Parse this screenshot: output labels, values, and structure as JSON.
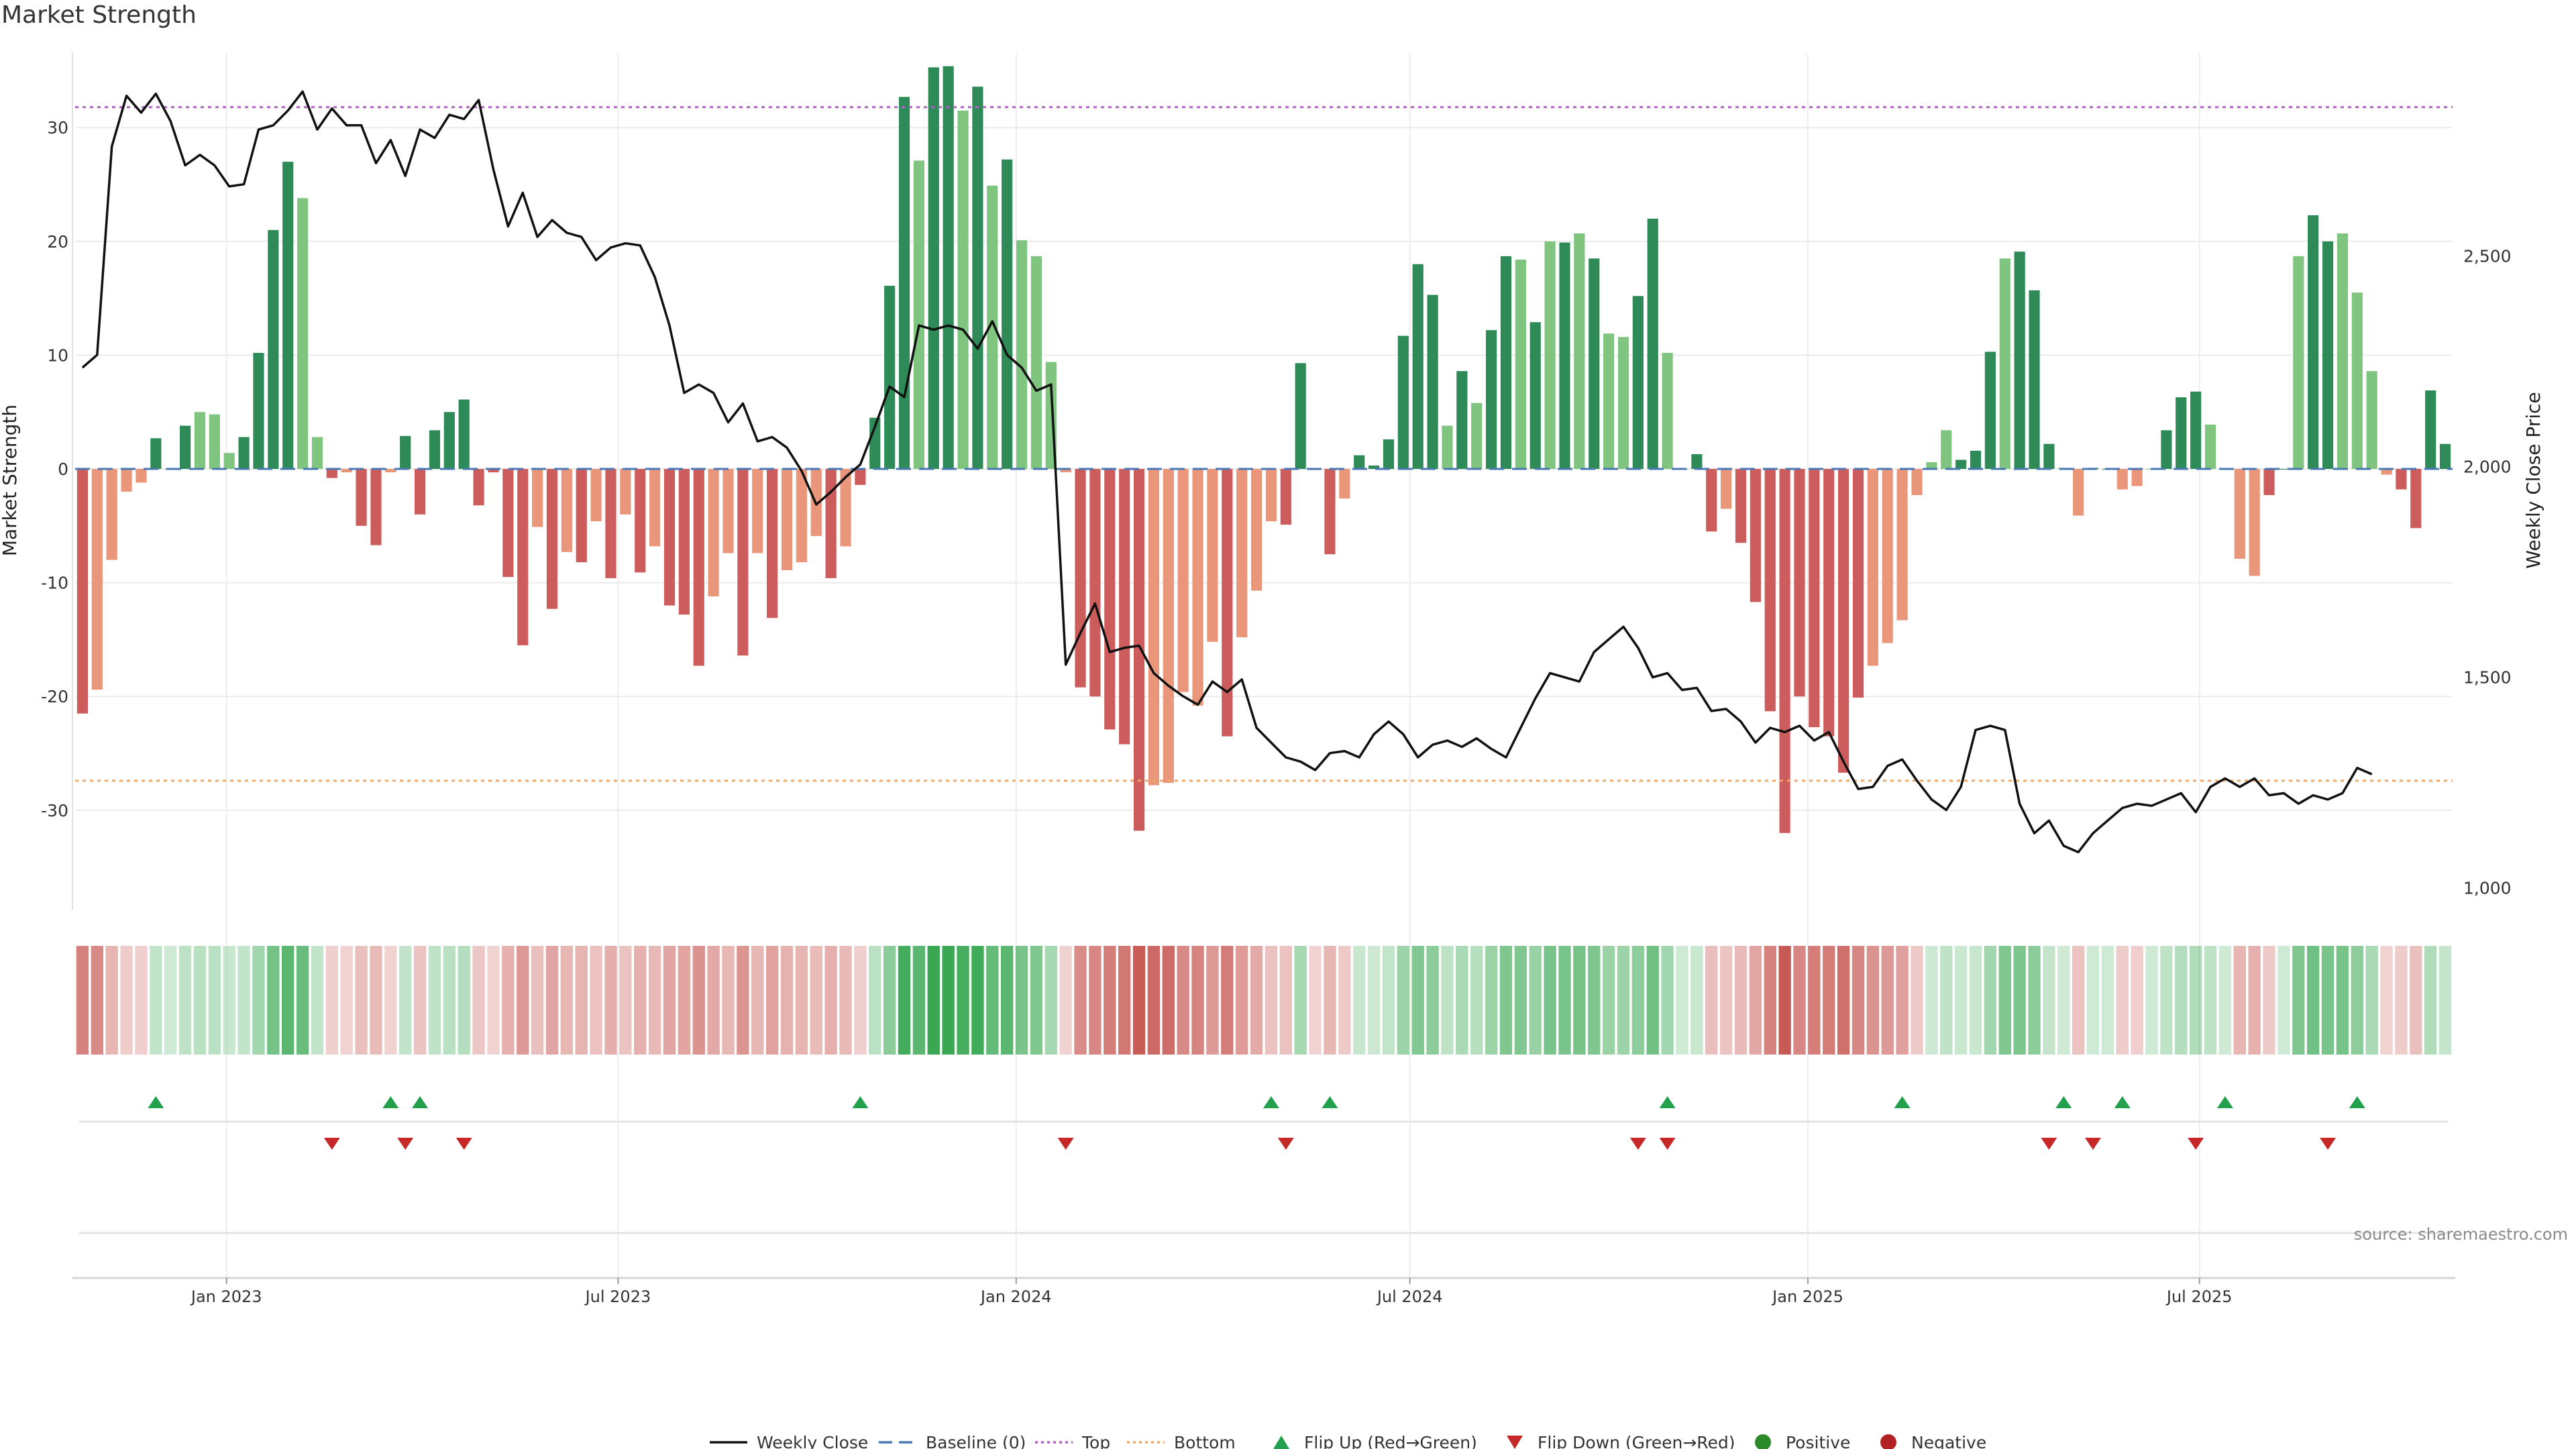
{
  "title": "Market Strength",
  "source": "source: sharemaestro.com",
  "colors": {
    "pos_strong": "#2e8b57",
    "pos_light": "#7fc47f",
    "neg_strong": "#cd5c5c",
    "neg_light": "#e9967a",
    "top_line": "#b25fc8",
    "bottom_line": "#f0a868",
    "baseline": "#4a78b5",
    "price_line": "#111111",
    "flip_up": "#22a04b",
    "flip_down": "#c62828",
    "positive_dot": "#2a8a2a",
    "negative_dot": "#b22222"
  },
  "chart_data": {
    "type": "bar",
    "ylabel": "Market Strength",
    "y2label": "Weekly Close Price",
    "ylim": [
      -38.5,
      36.5
    ],
    "y2lim": [
      955,
      2980
    ],
    "yticks": [
      30,
      20,
      10,
      0,
      -10,
      -20,
      -30
    ],
    "y2ticks": [
      "2,500",
      "2,000",
      "1,500",
      "1,000"
    ],
    "y2tickvalues": [
      2500,
      2000,
      1500,
      1000
    ],
    "top_level": 31.8,
    "bottom_level": -27.4,
    "x_start": "2022-10-23",
    "x_end": "2025-10-26",
    "xticks": [
      {
        "label": "Jan 2023",
        "date": "2023-01-01"
      },
      {
        "label": "Jul 2023",
        "date": "2023-07-01"
      },
      {
        "label": "Jan 2024",
        "date": "2024-01-01"
      },
      {
        "label": "Jul 2024",
        "date": "2024-07-01"
      },
      {
        "label": "Jan 2025",
        "date": "2025-01-01"
      },
      {
        "label": "Jul 2025",
        "date": "2025-07-01"
      }
    ],
    "strength": [
      -21.5,
      -19.4,
      -8,
      -2,
      -1.2,
      2.7,
      0,
      3.8,
      5,
      4.8,
      1.4,
      2.8,
      10.2,
      21,
      27,
      23.8,
      2.8,
      -0.8,
      -0.3,
      -5,
      -6.7,
      -0.3,
      2.9,
      -4,
      3.4,
      5,
      6.1,
      -3.2,
      -0.3,
      -9.5,
      -15.5,
      -5.1,
      -12.3,
      -7.3,
      -8.2,
      -4.6,
      -9.6,
      -4,
      -9.1,
      -6.8,
      -12,
      -12.8,
      -17.3,
      -11.2,
      -7.4,
      -16.4,
      -7.4,
      -13.1,
      -8.9,
      -8.2,
      -5.9,
      -9.6,
      -6.8,
      -1.4,
      4.5,
      16.1,
      32.7,
      27.1,
      35.3,
      35.4,
      31.5,
      33.6,
      24.9,
      27.2,
      20.1,
      18.7,
      9.4,
      -0.3,
      -19.2,
      -20,
      -22.9,
      -24.2,
      -31.8,
      -27.8,
      -27.6,
      -19.6,
      -20.8,
      -15.2,
      -23.5,
      -14.8,
      -10.7,
      -4.6,
      -4.9,
      9.3,
      -0.1,
      -7.5,
      -2.6,
      1.2,
      0.3,
      2.6,
      11.7,
      18,
      15.3,
      3.8,
      8.6,
      5.8,
      12.2,
      18.7,
      18.4,
      12.9,
      20,
      19.9,
      20.7,
      18.5,
      11.9,
      11.6,
      15.2,
      22,
      10.2,
      0,
      1.3,
      -5.5,
      -3.5,
      -6.5,
      -11.7,
      -21.3,
      -32,
      -20,
      -22.7,
      -23.5,
      -26.7,
      -20.1,
      -17.3,
      -15.3,
      -13.3,
      -2.3,
      0.6,
      3.4,
      0.8,
      1.6,
      10.3,
      18.5,
      19.1,
      15.7,
      2.2,
      0.1,
      -4.1,
      0.1,
      0,
      -1.8,
      -1.5,
      0,
      3.4,
      6.3,
      6.8,
      3.9,
      0,
      -7.9,
      -9.4,
      -2.3,
      0,
      18.7,
      22.3,
      20,
      20.7,
      15.5,
      8.6,
      -0.5,
      -1.8,
      -5.2,
      6.9,
      2.2
    ],
    "shade": [
      0,
      1,
      1,
      1,
      1,
      0,
      0,
      0,
      1,
      1,
      1,
      0,
      0,
      0,
      0,
      1,
      1,
      0,
      1,
      0,
      0,
      1,
      0,
      0,
      0,
      0,
      0,
      0,
      0,
      0,
      0,
      1,
      0,
      1,
      0,
      1,
      0,
      1,
      0,
      1,
      0,
      0,
      0,
      1,
      1,
      0,
      1,
      0,
      1,
      1,
      1,
      0,
      1,
      0,
      0,
      0,
      0,
      1,
      0,
      0,
      1,
      0,
      1,
      0,
      1,
      1,
      1,
      1,
      0,
      0,
      0,
      0,
      0,
      1,
      1,
      1,
      1,
      1,
      0,
      1,
      1,
      1,
      0,
      0,
      1,
      0,
      1,
      0,
      0,
      0,
      0,
      0,
      0,
      1,
      0,
      1,
      0,
      0,
      1,
      0,
      1,
      0,
      1,
      0,
      1,
      1,
      0,
      0,
      1,
      0,
      0,
      0,
      1,
      0,
      0,
      0,
      0,
      0,
      0,
      0,
      0,
      0,
      1,
      1,
      1,
      1,
      1,
      1,
      0,
      0,
      0,
      1,
      0,
      0,
      0,
      1,
      1,
      0,
      0,
      1,
      1,
      1,
      0,
      0,
      0,
      1,
      0,
      1,
      1,
      0,
      0,
      1,
      0,
      0,
      1,
      1,
      1,
      1,
      0
    ],
    "price": [
      2235,
      2265,
      2760,
      2880,
      2840,
      2885,
      2820,
      2715,
      2740,
      2715,
      2665,
      2670,
      2800,
      2810,
      2845,
      2890,
      2800,
      2850,
      2810,
      2810,
      2720,
      2775,
      2690,
      2800,
      2780,
      2835,
      2825,
      2870,
      2705,
      2570,
      2650,
      2545,
      2585,
      2555,
      2545,
      2490,
      2520,
      2530,
      2525,
      2450,
      2335,
      2175,
      2195,
      2175,
      2105,
      2150,
      2060,
      2070,
      2045,
      1990,
      1910,
      1940,
      1975,
      2005,
      2095,
      2190,
      2165,
      2335,
      2325,
      2335,
      2325,
      2280,
      2345,
      2265,
      2235,
      2180,
      2195,
      1530,
      1605,
      1675,
      1560,
      1570,
      1575,
      1510,
      1480,
      1455,
      1435,
      1490,
      1465,
      1495,
      1380,
      1345,
      1310,
      1300,
      1280,
      1320,
      1325,
      1310,
      1365,
      1395,
      1365,
      1310,
      1340,
      1350,
      1335,
      1355,
      1330,
      1310,
      1380,
      1450,
      1510,
      1500,
      1490,
      1560,
      1590,
      1620,
      1570,
      1500,
      1510,
      1470,
      1475,
      1420,
      1425,
      1395,
      1345,
      1380,
      1370,
      1385,
      1350,
      1370,
      1300,
      1235,
      1240,
      1290,
      1305,
      1255,
      1210,
      1185,
      1240,
      1375,
      1385,
      1375,
      1200,
      1130,
      1160,
      1100,
      1085,
      1130,
      1160,
      1190,
      1200,
      1195,
      1210,
      1225,
      1180,
      1240,
      1260,
      1240,
      1260,
      1220,
      1225,
      1200,
      1220,
      1210,
      1225,
      1285,
      1270
    ],
    "flip_up_index": [
      5,
      21,
      23,
      53,
      81,
      85,
      108,
      124,
      135,
      139,
      146,
      155
    ],
    "flip_down_index": [
      17,
      22,
      26,
      67,
      82,
      106,
      108,
      134,
      137,
      144,
      153
    ]
  },
  "legend": [
    {
      "type": "line-solid",
      "label": "Weekly Close"
    },
    {
      "type": "line-dashed",
      "label": "Baseline (0)"
    },
    {
      "type": "line-dotted-top",
      "label": "Top"
    },
    {
      "type": "line-dotted-bottom",
      "label": "Bottom"
    },
    {
      "type": "triangle-up",
      "label": "Flip Up (Red→Green)"
    },
    {
      "type": "triangle-down",
      "label": "Flip Down (Green→Red)"
    },
    {
      "type": "dot-positive",
      "label": "Positive"
    },
    {
      "type": "dot-negative",
      "label": "Negative"
    }
  ]
}
